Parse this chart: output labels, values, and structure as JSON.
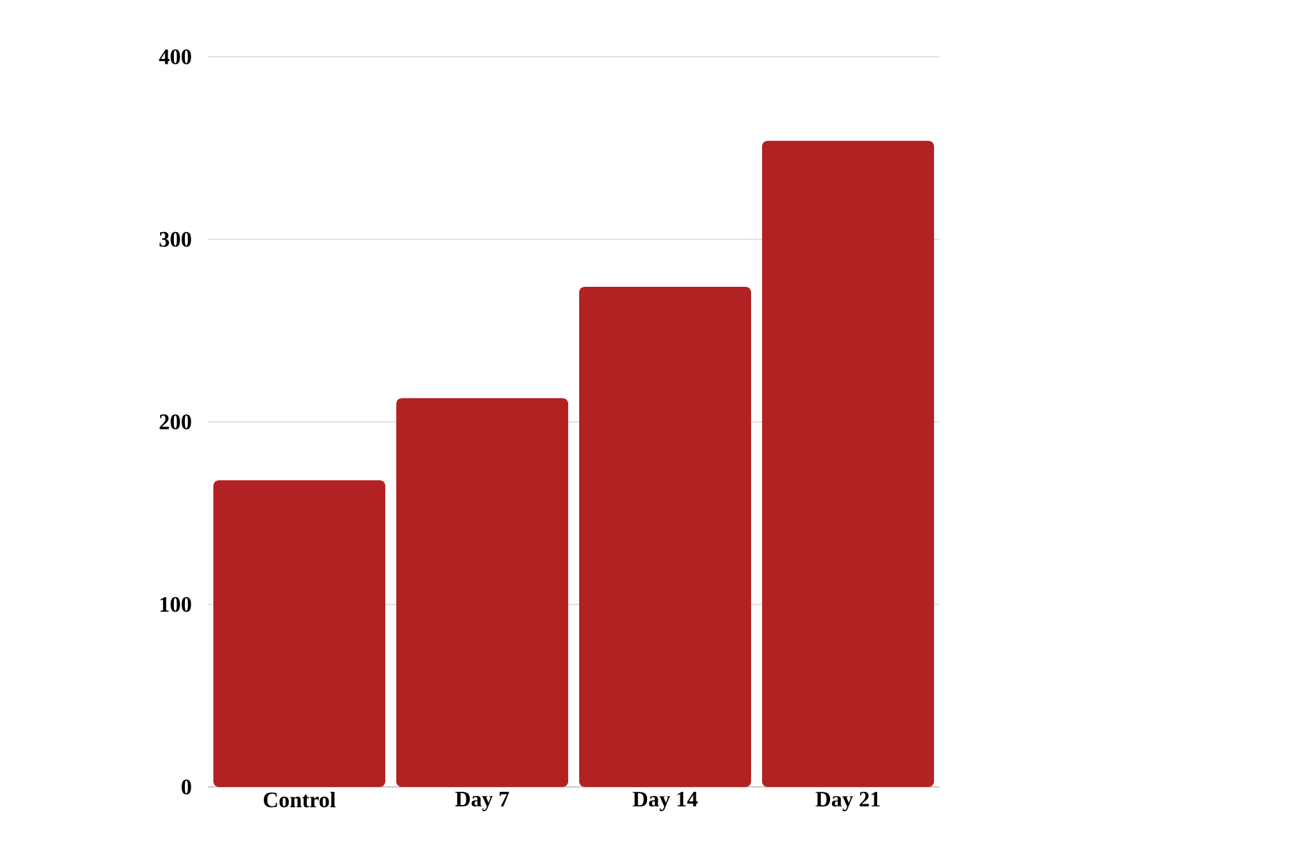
{
  "chart_data": {
    "type": "bar",
    "categories": [
      "Control",
      "Day 7",
      "Day 14",
      "Day 21"
    ],
    "values": [
      168,
      213,
      274,
      354
    ],
    "color": "#b22222",
    "ylim": [
      0,
      400
    ],
    "yticks": [
      0,
      100,
      200,
      300,
      400
    ],
    "grid": "y"
  }
}
